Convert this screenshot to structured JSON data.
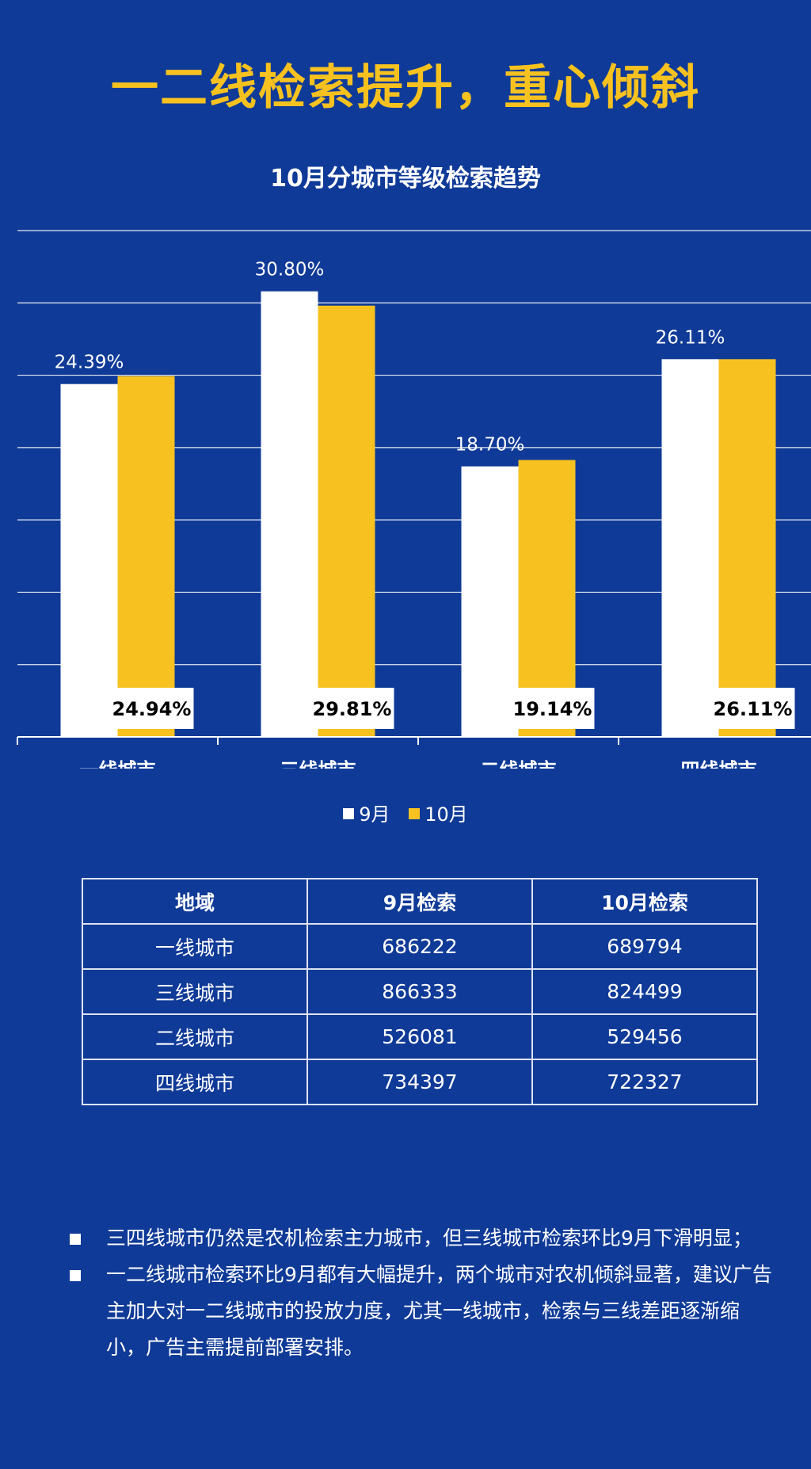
{
  "headline": "一二线检索提升，重心倾斜",
  "chart_data": {
    "type": "bar",
    "title": "10月分城市等级检索趋势",
    "categories": [
      "一线城市",
      "三线城市",
      "二线城市",
      "四线城市"
    ],
    "series": [
      {
        "name": "9月",
        "values": [
          24.39,
          30.8,
          18.7,
          26.11
        ],
        "labels": [
          "24.39%",
          "30.80%",
          "18.70%",
          "26.11%"
        ]
      },
      {
        "name": "10月",
        "values": [
          24.94,
          29.81,
          19.14,
          26.11
        ],
        "labels": [
          "24.94%",
          "29.81%",
          "19.14%",
          "26.11%"
        ]
      }
    ],
    "ylim": [
      0,
      35
    ],
    "grid": true,
    "legend_position": "bottom",
    "colors": {
      "sep": "#ffffff",
      "oct": "#f7c21f"
    }
  },
  "table": {
    "headers": [
      "地域",
      "9月检索",
      "10月检索"
    ],
    "rows": [
      [
        "一线城市",
        "686222",
        "689794"
      ],
      [
        "三线城市",
        "866333",
        "824499"
      ],
      [
        "二线城市",
        "526081",
        "529456"
      ],
      [
        "四线城市",
        "734397",
        "722327"
      ]
    ]
  },
  "notes": [
    "三四线城市仍然是农机检索主力城市，但三线城市检索环比9月下滑明显；",
    "一二线城市检索环比9月都有大幅提升，两个城市对农机倾斜显著，建议广告主加大对一二线城市的投放力度，尤其一线城市，检索与三线差距逐渐缩小，广告主需提前部署安排。"
  ]
}
